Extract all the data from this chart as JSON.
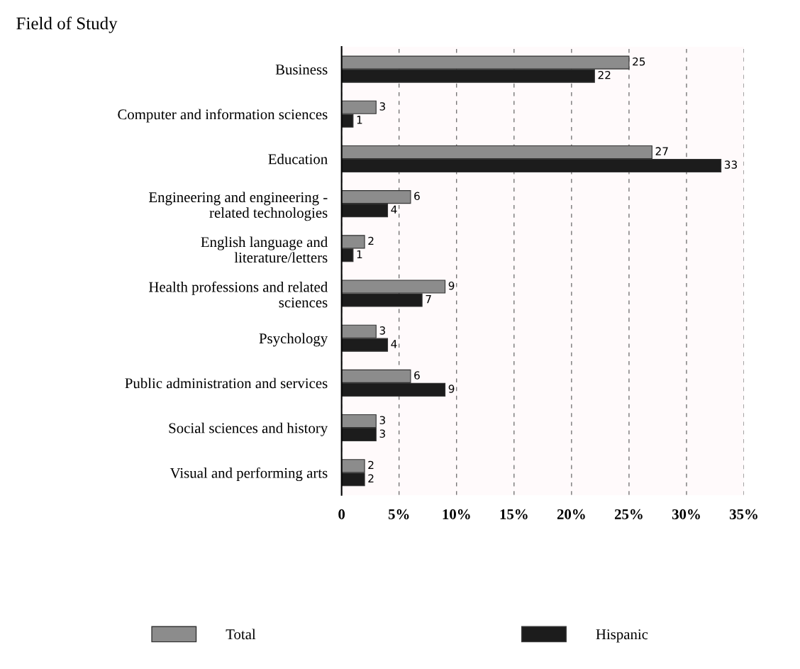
{
  "chart_data": {
    "type": "bar",
    "orientation": "horizontal",
    "title": "Field of Study",
    "categories": [
      "Business",
      "Computer and information sciences",
      "Education",
      "Engineering and engineering -\nrelated technologies",
      "English language and\nliterature/letters",
      "Health professions and related\nsciences",
      "Psychology",
      "Public administration and services",
      "Social sciences and history",
      "Visual and performing arts"
    ],
    "series": [
      {
        "name": "Total",
        "color": "#8c8c8c",
        "values": [
          25,
          3,
          27,
          6,
          2,
          9,
          3,
          6,
          3,
          2
        ]
      },
      {
        "name": "Hispanic",
        "color": "#1c1c1c",
        "values": [
          22,
          1,
          33,
          4,
          1,
          7,
          4,
          9,
          3,
          2
        ]
      }
    ],
    "xlim": [
      0,
      35
    ],
    "xticks": [
      0,
      {
        "value": 5,
        "label": "5%"
      },
      {
        "value": 10,
        "label": "10%"
      },
      {
        "value": 15,
        "label": "15%"
      },
      {
        "value": 20,
        "label": "20%"
      },
      {
        "value": 25,
        "label": "25%"
      },
      {
        "value": 30,
        "label": "30%"
      },
      {
        "value": 35,
        "label": "35%"
      }
    ],
    "grid": "x",
    "legend": "bottom",
    "data_labels": true
  }
}
